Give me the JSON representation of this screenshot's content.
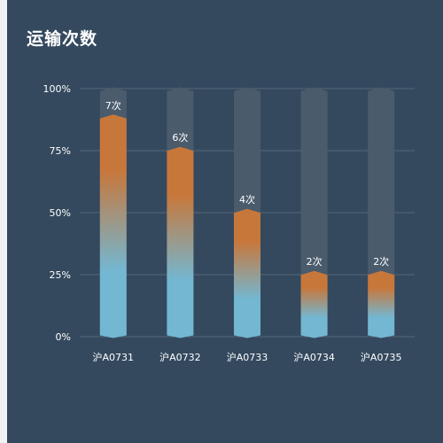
{
  "title": "运输次数",
  "chart_data": {
    "type": "bar",
    "categories": [
      "沪A0731",
      "沪A0732",
      "沪A0733",
      "沪A0734",
      "沪A0735"
    ],
    "values": [
      89,
      76,
      51,
      26,
      26
    ],
    "data_labels": [
      "7次",
      "6次",
      "4次",
      "2次",
      "2次"
    ],
    "y_ticks": [
      "0%",
      "25%",
      "50%",
      "75%",
      "100%"
    ],
    "ylim": [
      0,
      100
    ],
    "grid": true,
    "background_bars": true
  },
  "colors": {
    "panel_bg": "#34495e",
    "grid": "#566778",
    "track": "#4a5b6c",
    "bar_top": "#c8773a",
    "bar_bottom": "#73b7d2",
    "text": "#ffffff"
  }
}
